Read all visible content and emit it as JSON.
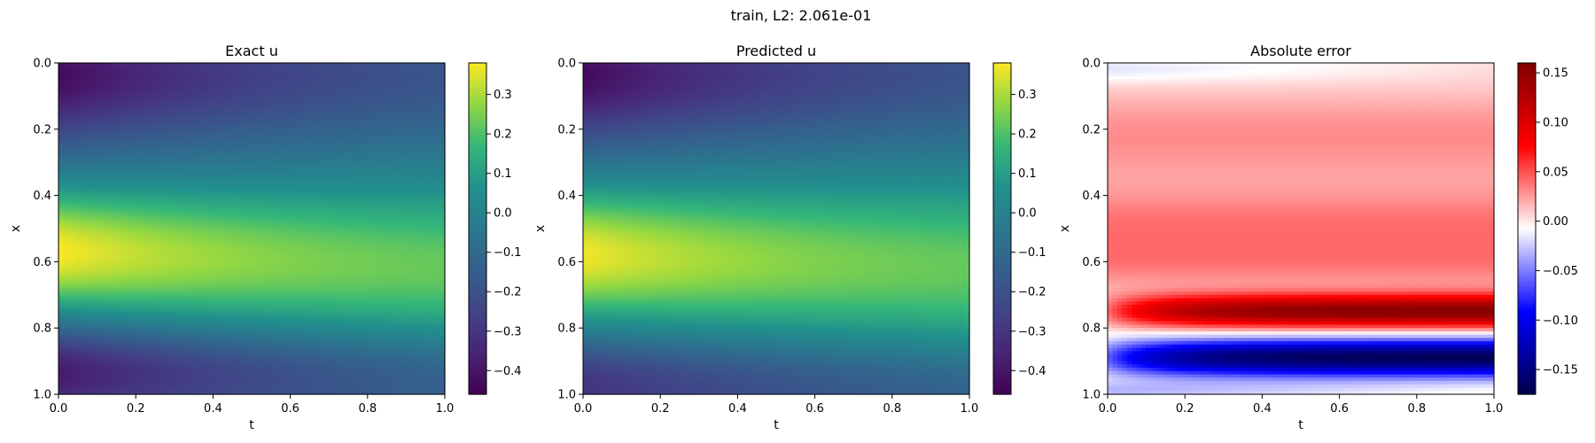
{
  "suptitle": "train, L2: 2.061e-01",
  "chart_data": [
    {
      "type": "heatmap",
      "title": "Exact u",
      "xlabel": "t",
      "ylabel": "x",
      "xlim": [
        0.0,
        1.0
      ],
      "ylim": [
        1.0,
        0.0
      ],
      "xticks": [
        "0.0",
        "0.2",
        "0.4",
        "0.6",
        "0.8",
        "1.0"
      ],
      "yticks": [
        "0.0",
        "0.2",
        "0.4",
        "0.6",
        "0.8",
        "1.0"
      ],
      "colormap": "viridis",
      "vmin": -0.46,
      "vmax": 0.38,
      "colorbar_ticks": [
        "0.3",
        "0.2",
        "0.1",
        "0.0",
        "−0.1",
        "−0.2",
        "−0.3",
        "−0.4"
      ],
      "colorbar_tick_values": [
        0.3,
        0.2,
        0.1,
        0.0,
        -0.1,
        -0.2,
        -0.3,
        -0.4
      ]
    },
    {
      "type": "heatmap",
      "title": "Predicted u",
      "xlabel": "t",
      "ylabel": "x",
      "xlim": [
        0.0,
        1.0
      ],
      "ylim": [
        1.0,
        0.0
      ],
      "xticks": [
        "0.0",
        "0.2",
        "0.4",
        "0.6",
        "0.8",
        "1.0"
      ],
      "yticks": [
        "0.0",
        "0.2",
        "0.4",
        "0.6",
        "0.8",
        "1.0"
      ],
      "colormap": "viridis",
      "vmin": -0.46,
      "vmax": 0.38,
      "colorbar_ticks": [
        "0.3",
        "0.2",
        "0.1",
        "0.0",
        "−0.1",
        "−0.2",
        "−0.3",
        "−0.4"
      ],
      "colorbar_tick_values": [
        0.3,
        0.2,
        0.1,
        0.0,
        -0.1,
        -0.2,
        -0.3,
        -0.4
      ]
    },
    {
      "type": "heatmap",
      "title": "Absolute error",
      "xlabel": "t",
      "ylabel": "x",
      "xlim": [
        0.0,
        1.0
      ],
      "ylim": [
        1.0,
        0.0
      ],
      "xticks": [
        "0.0",
        "0.2",
        "0.4",
        "0.6",
        "0.8",
        "1.0"
      ],
      "yticks": [
        "0.0",
        "0.2",
        "0.4",
        "0.6",
        "0.8",
        "1.0"
      ],
      "colormap": "seismic",
      "vmin": -0.175,
      "vmax": 0.16,
      "colorbar_ticks": [
        "0.15",
        "0.10",
        "0.05",
        "0.00",
        "−0.05",
        "−0.10",
        "−0.15"
      ],
      "colorbar_tick_values": [
        0.15,
        0.1,
        0.05,
        0.0,
        -0.05,
        -0.1,
        -0.15
      ]
    }
  ]
}
